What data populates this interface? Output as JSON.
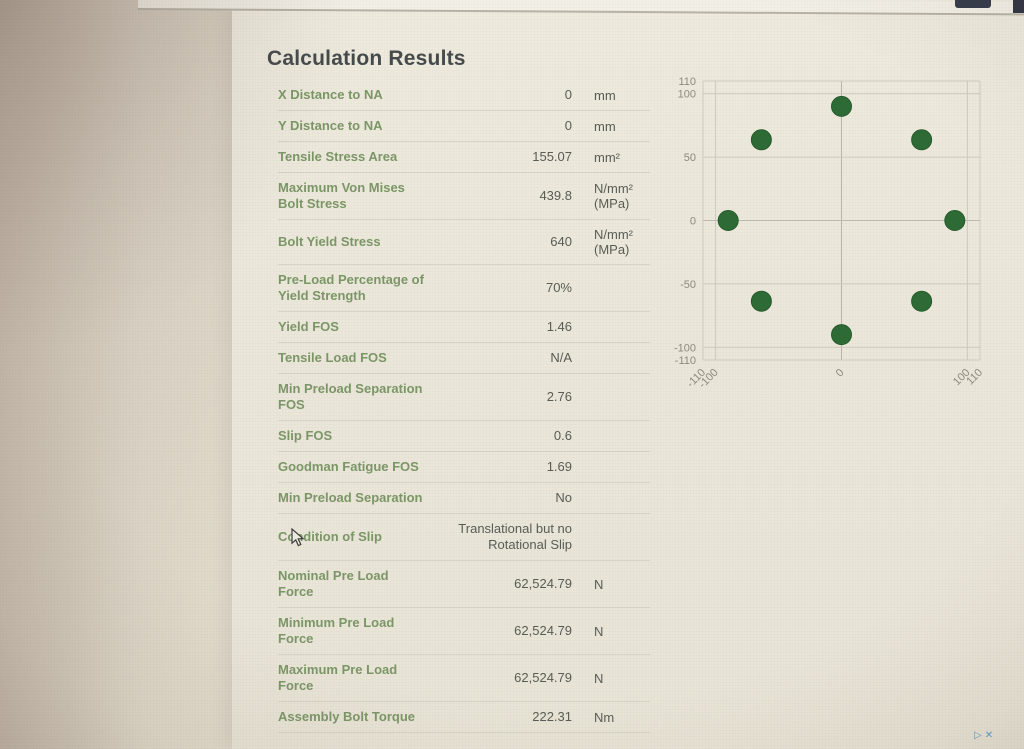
{
  "page": {
    "title": "Calculation Results"
  },
  "browser": {
    "adchoices_icon": "▷",
    "ad_close_icon": "✕"
  },
  "results_table": {
    "rows": [
      {
        "label": "X Distance to NA",
        "value": "0",
        "unit": "mm"
      },
      {
        "label": "Y Distance to NA",
        "value": "0",
        "unit": "mm"
      },
      {
        "label": "Tensile Stress Area",
        "value": "155.07",
        "unit": "mm²"
      },
      {
        "label": "Maximum Von Mises\nBolt Stress",
        "value": "439.8",
        "unit": "N/mm²\n(MPa)"
      },
      {
        "label": "Bolt Yield Stress",
        "value": "640",
        "unit": "N/mm²\n(MPa)"
      },
      {
        "label": "Pre-Load Percentage of\nYield Strength",
        "value": "70%",
        "unit": ""
      },
      {
        "label": "Yield FOS",
        "value": "1.46",
        "unit": ""
      },
      {
        "label": "Tensile Load FOS",
        "value": "N/A",
        "unit": ""
      },
      {
        "label": "Min Preload Separation\nFOS",
        "value": "2.76",
        "unit": ""
      },
      {
        "label": "Slip FOS",
        "value": "0.6",
        "unit": ""
      },
      {
        "label": "Goodman Fatigue FOS",
        "value": "1.69",
        "unit": ""
      },
      {
        "label": "Min Preload Separation",
        "value": "No",
        "unit": ""
      },
      {
        "label": "Condition of Slip",
        "value": "Translational but no\nRotational Slip",
        "unit": ""
      },
      {
        "label": "Nominal Pre Load\nForce",
        "value": "62,524.79",
        "unit": "N"
      },
      {
        "label": "Minimum Pre Load\nForce",
        "value": "62,524.79",
        "unit": "N"
      },
      {
        "label": "Maximum Pre Load\nForce",
        "value": "62,524.79",
        "unit": "N"
      },
      {
        "label": "Assembly Bolt Torque",
        "value": "222.31",
        "unit": "Nm"
      }
    ]
  },
  "chart_data": {
    "type": "scatter",
    "title": "",
    "xlabel": "",
    "ylabel": "",
    "xlim": [
      -110,
      110
    ],
    "ylim": [
      -110,
      110
    ],
    "xticks": [
      -110,
      -100,
      0,
      100,
      110
    ],
    "yticks": [
      110,
      100,
      50,
      0,
      -50,
      -100,
      -110
    ],
    "grid": true,
    "legend_position": "none",
    "marker_color": "#2d6b35",
    "series": [
      {
        "name": "bolt-pattern-positions",
        "points": [
          [
            0,
            90
          ],
          [
            63.64,
            63.64
          ],
          [
            90,
            0
          ],
          [
            63.64,
            -63.64
          ],
          [
            0,
            -90
          ],
          [
            -63.64,
            -63.64
          ],
          [
            -90,
            0
          ],
          [
            -63.64,
            63.64
          ]
        ]
      }
    ]
  },
  "colors": {
    "label_green": "#7c9767",
    "value_gray": "#595c55",
    "dot_green": "#2d6b35",
    "grid_gray": "#cfcbbe",
    "adchoices_blue": "#5b9bd0"
  }
}
